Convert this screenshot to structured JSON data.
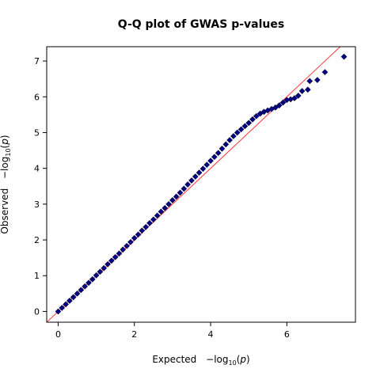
{
  "chart_data": {
    "type": "scatter",
    "title": "Q-Q plot of GWAS p-values",
    "xlabel": {
      "prefix": "Expected",
      "base": "log",
      "sub": "10",
      "arg": "p"
    },
    "ylabel": {
      "prefix": "Observed",
      "base": "log",
      "sub": "10",
      "arg": "p"
    },
    "xlim": [
      -0.3,
      7.8
    ],
    "ylim": [
      -0.3,
      7.4
    ],
    "x_ticks": [
      0,
      2,
      4,
      6
    ],
    "y_ticks": [
      0,
      1,
      2,
      3,
      4,
      5,
      6,
      7
    ],
    "grid": false,
    "reference_line": {
      "slope": 1,
      "intercept": 0,
      "color": "#ff3333"
    },
    "marker": {
      "shape": "diamond",
      "fill": "#00008b",
      "stroke": "#000033"
    },
    "series": [
      {
        "points": [
          [
            0.0,
            0.0
          ],
          [
            0.1,
            0.1
          ],
          [
            0.2,
            0.2
          ],
          [
            0.3,
            0.3
          ],
          [
            0.4,
            0.4
          ],
          [
            0.5,
            0.5
          ],
          [
            0.6,
            0.6
          ],
          [
            0.7,
            0.7
          ],
          [
            0.8,
            0.8
          ],
          [
            0.9,
            0.9
          ],
          [
            1.0,
            1.01
          ],
          [
            1.1,
            1.11
          ],
          [
            1.2,
            1.21
          ],
          [
            1.3,
            1.32
          ],
          [
            1.4,
            1.42
          ],
          [
            1.5,
            1.52
          ],
          [
            1.6,
            1.62
          ],
          [
            1.7,
            1.73
          ],
          [
            1.8,
            1.83
          ],
          [
            1.9,
            1.94
          ],
          [
            2.0,
            2.05
          ],
          [
            2.1,
            2.15
          ],
          [
            2.2,
            2.26
          ],
          [
            2.3,
            2.36
          ],
          [
            2.4,
            2.47
          ],
          [
            2.5,
            2.57
          ],
          [
            2.6,
            2.68
          ],
          [
            2.7,
            2.79
          ],
          [
            2.8,
            2.89
          ],
          [
            2.9,
            3.0
          ],
          [
            3.0,
            3.11
          ],
          [
            3.1,
            3.21
          ],
          [
            3.2,
            3.32
          ],
          [
            3.3,
            3.43
          ],
          [
            3.4,
            3.55
          ],
          [
            3.5,
            3.66
          ],
          [
            3.6,
            3.77
          ],
          [
            3.7,
            3.88
          ],
          [
            3.8,
            3.99
          ],
          [
            3.9,
            4.1
          ],
          [
            4.0,
            4.21
          ],
          [
            4.1,
            4.32
          ],
          [
            4.2,
            4.43
          ],
          [
            4.3,
            4.55
          ],
          [
            4.4,
            4.67
          ],
          [
            4.5,
            4.79
          ],
          [
            4.6,
            4.9
          ],
          [
            4.7,
            5.0
          ],
          [
            4.8,
            5.09
          ],
          [
            4.9,
            5.18
          ],
          [
            5.0,
            5.27
          ],
          [
            5.1,
            5.37
          ],
          [
            5.2,
            5.46
          ],
          [
            5.3,
            5.53
          ],
          [
            5.4,
            5.58
          ],
          [
            5.5,
            5.62
          ],
          [
            5.6,
            5.66
          ],
          [
            5.7,
            5.7
          ],
          [
            5.8,
            5.76
          ],
          [
            5.9,
            5.84
          ],
          [
            6.0,
            5.91
          ],
          [
            6.1,
            5.93
          ],
          [
            6.2,
            5.96
          ],
          [
            6.3,
            6.03
          ],
          [
            6.4,
            6.16
          ],
          [
            6.55,
            6.2
          ],
          [
            6.6,
            6.44
          ],
          [
            6.8,
            6.47
          ],
          [
            7.0,
            6.69
          ],
          [
            7.5,
            7.12
          ]
        ]
      }
    ]
  }
}
